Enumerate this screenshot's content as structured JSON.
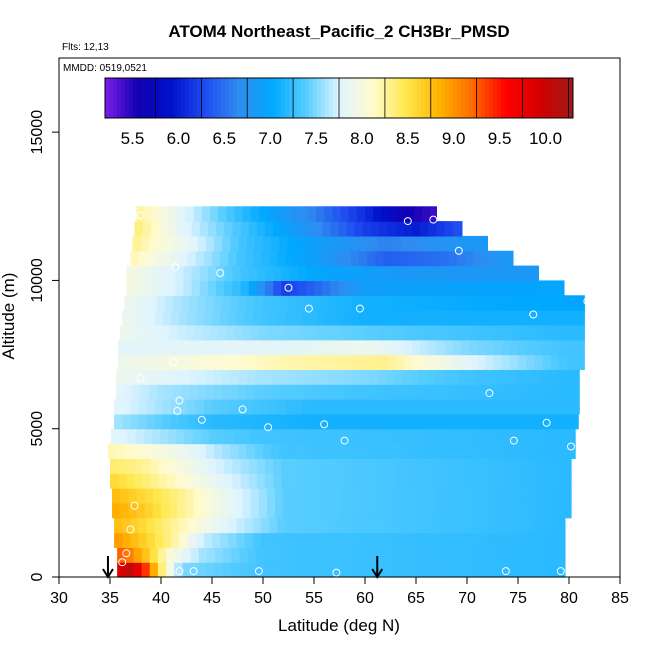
{
  "chart_data": {
    "type": "heatmap",
    "title": "ATOM4 Northeast_Pacific_2 CH3Br_PMSD",
    "flights_label": "Flts: 12,13",
    "date_label": "MMDD: 0519,0521",
    "xlabel": "Latitude (deg N)",
    "ylabel": "Altitude (m)",
    "xlim": [
      30,
      85
    ],
    "ylim": [
      0,
      17500
    ],
    "xticks": [
      30,
      35,
      40,
      45,
      50,
      55,
      60,
      65,
      70,
      75,
      80,
      85
    ],
    "yticks": [
      0,
      5000,
      10000,
      15000
    ],
    "colorbar": {
      "min": 5.2,
      "max": 10.3,
      "ticks": [
        5.5,
        6.0,
        6.5,
        7.0,
        7.5,
        8.0,
        8.5,
        9.0,
        9.5,
        10.0
      ],
      "tick_labels": [
        "5.5",
        "6.0",
        "6.5",
        "7.0",
        "7.5",
        "8.0",
        "8.5",
        "9.0",
        "9.5",
        "10.0"
      ],
      "colors": [
        "#7a1ee6",
        "#1200b3",
        "#0011cc",
        "#1f4cf0",
        "#2f8cf0",
        "#00a8ff",
        "#55ccff",
        "#dff4ff",
        "#fffbd0",
        "#ffe84d",
        "#ffb300",
        "#ff6a00",
        "#ff0000",
        "#d40000",
        "#a01818"
      ]
    },
    "layers": [
      {
        "y0": 0,
        "y1": 500,
        "x0": 35.7,
        "x1": 79.6,
        "xs": [
          35.7,
          37,
          38.5,
          40,
          42,
          50,
          80
        ],
        "vals": [
          9.8,
          10.1,
          9.4,
          8.4,
          7.5,
          7.3,
          7.2
        ]
      },
      {
        "y0": 500,
        "y1": 1000,
        "x0": 35.7,
        "x1": 79.6,
        "xs": [
          35.7,
          37,
          39,
          41,
          44,
          50,
          80
        ],
        "vals": [
          9.3,
          9.1,
          8.6,
          8.0,
          7.6,
          7.3,
          7.2
        ]
      },
      {
        "y0": 1000,
        "y1": 1500,
        "x0": 35.4,
        "x1": 79.6,
        "xs": [
          35.4,
          38,
          41,
          44,
          50,
          80
        ],
        "vals": [
          9.0,
          8.7,
          8.3,
          7.7,
          7.3,
          7.2
        ]
      },
      {
        "y0": 1500,
        "y1": 2000,
        "x0": 35.4,
        "x1": 79.6,
        "xs": [
          35.4,
          38,
          42,
          46,
          52,
          80
        ],
        "vals": [
          8.8,
          8.6,
          8.2,
          7.8,
          7.4,
          7.2
        ]
      },
      {
        "y0": 2000,
        "y1": 2500,
        "x0": 35.2,
        "x1": 80.2,
        "xs": [
          35.2,
          38,
          42,
          46,
          52,
          80
        ],
        "vals": [
          8.9,
          8.7,
          8.3,
          7.9,
          7.4,
          7.2
        ]
      },
      {
        "y0": 2500,
        "y1": 3000,
        "x0": 35.2,
        "x1": 80.2,
        "xs": [
          35.2,
          38,
          42,
          46,
          52,
          80
        ],
        "vals": [
          8.8,
          8.6,
          8.3,
          7.9,
          7.4,
          7.2
        ]
      },
      {
        "y0": 3000,
        "y1": 3500,
        "x0": 35.0,
        "x1": 80.2,
        "xs": [
          35.0,
          38,
          42,
          46,
          52,
          80
        ],
        "vals": [
          8.6,
          8.4,
          8.1,
          7.8,
          7.4,
          7.2
        ]
      },
      {
        "y0": 3500,
        "y1": 4000,
        "x0": 35.0,
        "x1": 80.2,
        "xs": [
          35.0,
          38,
          42,
          46,
          52,
          80
        ],
        "vals": [
          8.4,
          8.3,
          8.0,
          7.7,
          7.4,
          7.2
        ]
      },
      {
        "y0": 4000,
        "y1": 4500,
        "x0": 34.8,
        "x1": 80.6,
        "xs": [
          34.8,
          38,
          42,
          46,
          52,
          80
        ],
        "vals": [
          8.2,
          8.1,
          7.9,
          7.6,
          7.3,
          7.2
        ]
      },
      {
        "y0": 4500,
        "y1": 5000,
        "x0": 35.1,
        "x1": 80.6,
        "xs": [
          35.1,
          40,
          45,
          50,
          80
        ],
        "vals": [
          7.8,
          7.6,
          7.4,
          7.3,
          7.2
        ]
      },
      {
        "y0": 5000,
        "y1": 5500,
        "x0": 35.4,
        "x1": 80.9,
        "xs": [
          35.4,
          40,
          45,
          55,
          80
        ],
        "vals": [
          7.6,
          7.4,
          7.2,
          7.1,
          7.1
        ]
      },
      {
        "y0": 5500,
        "y1": 6000,
        "x0": 35.4,
        "x1": 81.0,
        "xs": [
          35.4,
          40,
          45,
          55,
          80
        ],
        "vals": [
          7.8,
          7.6,
          7.4,
          7.2,
          7.2
        ]
      },
      {
        "y0": 6000,
        "y1": 6500,
        "x0": 35.6,
        "x1": 81.0,
        "xs": [
          35.6,
          40,
          50,
          60,
          80
        ],
        "vals": [
          7.8,
          7.6,
          7.4,
          7.3,
          7.2
        ]
      },
      {
        "y0": 6500,
        "y1": 7000,
        "x0": 35.6,
        "x1": 81.0,
        "xs": [
          35.6,
          40,
          50,
          60,
          70,
          80
        ],
        "vals": [
          7.9,
          7.8,
          7.6,
          7.5,
          7.3,
          7.2
        ]
      },
      {
        "y0": 7000,
        "y1": 7500,
        "x0": 35.8,
        "x1": 81.5,
        "xs": [
          35.8,
          42,
          52,
          62,
          70,
          80
        ],
        "vals": [
          7.9,
          8.0,
          8.2,
          8.3,
          7.8,
          7.3
        ]
      },
      {
        "y0": 7500,
        "y1": 8000,
        "x0": 35.8,
        "x1": 81.5,
        "xs": [
          35.8,
          42,
          52,
          60,
          70,
          80
        ],
        "vals": [
          7.8,
          7.8,
          7.8,
          7.9,
          7.5,
          7.3
        ]
      },
      {
        "y0": 8000,
        "y1": 8500,
        "x0": 36.0,
        "x1": 81.5,
        "xs": [
          36.0,
          42,
          50,
          60,
          70,
          80
        ],
        "vals": [
          7.9,
          7.7,
          7.5,
          7.4,
          7.3,
          7.2
        ]
      },
      {
        "y0": 8500,
        "y1": 9000,
        "x0": 36.2,
        "x1": 81.5,
        "xs": [
          36.2,
          42,
          50,
          60,
          80
        ],
        "vals": [
          7.9,
          7.6,
          7.3,
          7.1,
          7.1
        ]
      },
      {
        "y0": 9000,
        "y1": 9500,
        "x0": 36.4,
        "x1": 81.5,
        "xs": [
          36.4,
          42,
          50,
          60,
          80
        ],
        "vals": [
          7.9,
          7.6,
          7.3,
          7.1,
          7.0
        ]
      },
      {
        "y0": 9500,
        "y1": 10000,
        "x0": 36.6,
        "x1": 79.5,
        "xs": [
          36.6,
          42,
          48,
          52,
          56,
          60,
          80
        ],
        "vals": [
          8.0,
          7.7,
          7.2,
          6.2,
          6.5,
          6.9,
          7.0
        ]
      },
      {
        "y0": 10000,
        "y1": 10500,
        "x0": 36.6,
        "x1": 77.0,
        "xs": [
          36.6,
          42,
          48,
          55,
          65,
          77
        ],
        "vals": [
          8.0,
          7.7,
          7.3,
          7.0,
          6.8,
          6.8
        ]
      },
      {
        "y0": 10500,
        "y1": 11000,
        "x0": 37.0,
        "x1": 74.5,
        "xs": [
          37.0,
          42,
          48,
          55,
          62,
          68,
          74
        ],
        "vals": [
          8.2,
          7.8,
          7.3,
          6.9,
          6.4,
          6.5,
          6.8
        ]
      },
      {
        "y0": 11000,
        "y1": 11500,
        "x0": 37.2,
        "x1": 72.0,
        "xs": [
          37.2,
          42,
          48,
          55,
          62,
          70
        ],
        "vals": [
          8.3,
          7.9,
          7.3,
          6.9,
          6.6,
          6.8
        ]
      },
      {
        "y0": 11500,
        "y1": 12000,
        "x0": 37.4,
        "x1": 69.5,
        "xs": [
          37.4,
          42,
          48,
          55,
          60,
          65,
          69
        ],
        "vals": [
          8.4,
          7.8,
          7.3,
          6.7,
          6.2,
          6.0,
          6.3
        ]
      },
      {
        "y0": 12000,
        "y1": 12500,
        "x0": 37.6,
        "x1": 67.0,
        "xs": [
          37.6,
          42,
          48,
          55,
          60,
          64,
          67
        ],
        "vals": [
          8.3,
          7.8,
          7.2,
          6.6,
          6.1,
          5.6,
          5.4
        ]
      }
    ],
    "samples": [
      [
        36.2,
        500
      ],
      [
        36.6,
        800
      ],
      [
        37.0,
        1600
      ],
      [
        37.4,
        2400
      ],
      [
        41.8,
        200
      ],
      [
        43.2,
        200
      ],
      [
        49.6,
        200
      ],
      [
        57.2,
        150
      ],
      [
        73.8,
        200
      ],
      [
        79.2,
        200
      ],
      [
        44.0,
        5300
      ],
      [
        48.0,
        5650
      ],
      [
        50.5,
        5050
      ],
      [
        56.0,
        5150
      ],
      [
        58.0,
        4600
      ],
      [
        41.6,
        5600
      ],
      [
        41.8,
        5950
      ],
      [
        38.0,
        6700
      ],
      [
        41.2,
        7250
      ],
      [
        72.2,
        6200
      ],
      [
        74.6,
        4600
      ],
      [
        77.8,
        5200
      ],
      [
        80.2,
        4400
      ],
      [
        54.5,
        9050
      ],
      [
        59.5,
        9050
      ],
      [
        52.5,
        9750
      ],
      [
        76.5,
        8850
      ],
      [
        81.8,
        9300
      ],
      [
        41.4,
        10450
      ],
      [
        45.8,
        10250
      ],
      [
        64.2,
        12000
      ],
      [
        66.7,
        12050
      ],
      [
        69.2,
        11000
      ],
      [
        38.0,
        12200
      ]
    ],
    "arrows": [
      34.8,
      61.2
    ]
  }
}
